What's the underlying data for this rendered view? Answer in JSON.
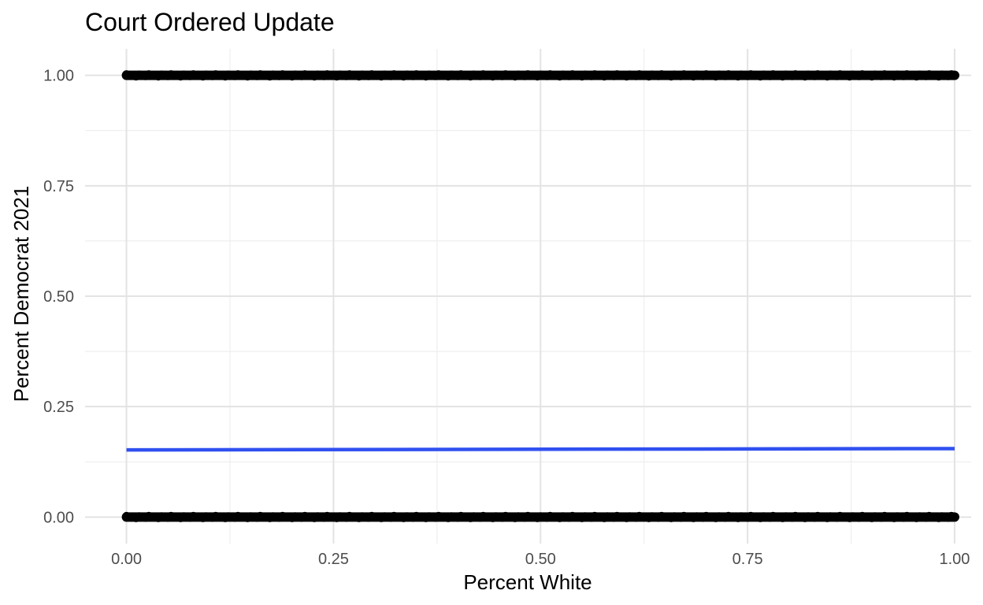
{
  "chart_data": {
    "type": "scatter",
    "title": "Court Ordered Update",
    "xlabel": "Percent White",
    "ylabel": "Percent Democrat 2021",
    "xlim": [
      -0.05,
      1.02
    ],
    "ylim": [
      -0.06,
      1.06
    ],
    "x_ticks": [
      0.0,
      0.25,
      0.5,
      0.75,
      1.0
    ],
    "x_tick_labels": [
      "0.00",
      "0.25",
      "0.50",
      "0.75",
      "1.00"
    ],
    "y_ticks": [
      0.0,
      0.25,
      0.5,
      0.75,
      1.0
    ],
    "y_tick_labels": [
      "0.00",
      "0.25",
      "0.50",
      "0.75",
      "1.00"
    ],
    "x_minor_ticks": [
      0.125,
      0.375,
      0.625,
      0.875
    ],
    "y_minor_ticks": [
      0.125,
      0.375,
      0.625,
      0.875
    ],
    "grid": true,
    "legend": "none",
    "point_bands": [
      {
        "y": 1.0,
        "x_range": [
          0.0,
          1.0
        ],
        "color": "#000000"
      },
      {
        "y": 0.0,
        "x_range": [
          0.0,
          1.0
        ],
        "color": "#000000"
      }
    ],
    "trend_line": {
      "x": [
        0.0,
        1.0
      ],
      "y": [
        0.152,
        0.155
      ],
      "color": "#3050F0"
    }
  }
}
